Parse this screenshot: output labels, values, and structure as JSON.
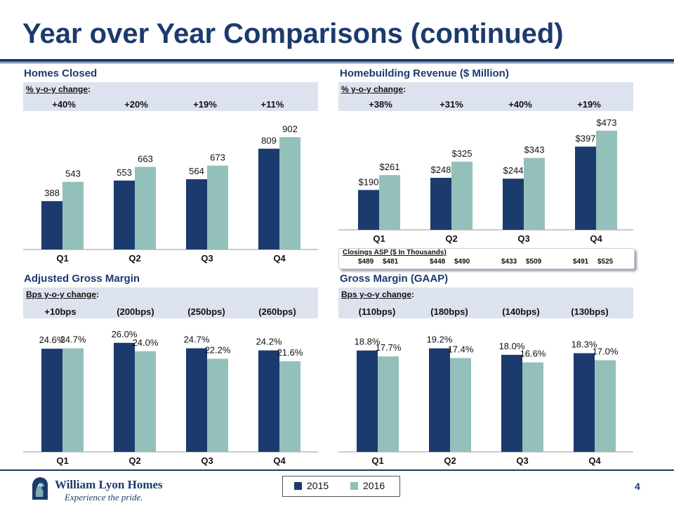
{
  "title": "Year over Year Comparisons (continued)",
  "colors": {
    "navy": "#1b3a6e",
    "teal": "#93c0bb",
    "series2015": "#1b3a6e",
    "series2016": "#93c0bb"
  },
  "legend": [
    {
      "label": "2015",
      "color": "#1b3a6e"
    },
    {
      "label": "2016",
      "color": "#93c0bb"
    }
  ],
  "page_number": "4",
  "logo": {
    "name": "William Lyon Homes",
    "tagline": "Experience the pride."
  },
  "panels": {
    "homes_closed": {
      "title": "Homes Closed",
      "yoy_label": "% y-o-y change",
      "yoy_values": [
        "+40%",
        "+20%",
        "+19%",
        "+11%"
      ]
    },
    "revenue": {
      "title": "Homebuilding Revenue ($ Million)",
      "yoy_label": "% y-o-y change",
      "yoy_values": [
        "+38%",
        "+31%",
        "+40%",
        "+19%"
      ]
    },
    "adj_margin": {
      "title": "Adjusted Gross Margin",
      "yoy_label": "Bps y-o-y change",
      "yoy_values": [
        "+10bps",
        "(200bps)",
        "(250bps)",
        "(260bps)"
      ]
    },
    "gaap_margin": {
      "title": "Gross Margin (GAAP)",
      "yoy_label": "Bps y-o-y change",
      "yoy_values": [
        "(110bps)",
        "(180bps)",
        "(140bps)",
        "(130bps)"
      ]
    }
  },
  "asp": {
    "title": "Closings ASP ($ In Thousands)",
    "groups": [
      {
        "v2015": "$489",
        "v2016": "$481"
      },
      {
        "v2015": "$448",
        "v2016": "$490"
      },
      {
        "v2015": "$433",
        "v2016": "$509"
      },
      {
        "v2015": "$491",
        "v2016": "$525"
      }
    ]
  },
  "chart_data": [
    {
      "id": "homes_closed",
      "type": "bar",
      "title": "Homes Closed",
      "categories": [
        "Q1",
        "Q2",
        "Q3",
        "Q4"
      ],
      "series": [
        {
          "name": "2015",
          "values": [
            388,
            553,
            564,
            809
          ],
          "labels": [
            "388",
            "553",
            "564",
            "809"
          ]
        },
        {
          "name": "2016",
          "values": [
            543,
            663,
            673,
            902
          ],
          "labels": [
            "543",
            "663",
            "673",
            "902"
          ]
        }
      ],
      "ylim": [
        0,
        1100
      ]
    },
    {
      "id": "revenue",
      "type": "bar",
      "title": "Homebuilding Revenue ($ Million)",
      "categories": [
        "Q1",
        "Q2",
        "Q3",
        "Q4"
      ],
      "series": [
        {
          "name": "2015",
          "values": [
            190,
            248,
            244,
            397
          ],
          "labels": [
            "$190",
            "$248",
            "$244",
            "$397"
          ]
        },
        {
          "name": "2016",
          "values": [
            261,
            325,
            343,
            473
          ],
          "labels": [
            "$261",
            "$325",
            "$343",
            "$473"
          ]
        }
      ],
      "ylim": [
        0,
        560
      ]
    },
    {
      "id": "adj_margin",
      "type": "bar",
      "title": "Adjusted Gross Margin",
      "categories": [
        "Q1",
        "Q2",
        "Q3",
        "Q4"
      ],
      "series": [
        {
          "name": "2015",
          "values": [
            24.6,
            26.0,
            24.7,
            24.2
          ],
          "labels": [
            "24.6%",
            "26.0%",
            "24.7%",
            "24.2%"
          ]
        },
        {
          "name": "2016",
          "values": [
            24.7,
            24.0,
            22.2,
            21.6
          ],
          "labels": [
            "24.7%",
            "24.0%",
            "22.2%",
            "21.6%"
          ]
        }
      ],
      "ylim": [
        0,
        31.5
      ]
    },
    {
      "id": "gaap_margin",
      "type": "bar",
      "title": "Gross Margin (GAAP)",
      "categories": [
        "Q1",
        "Q2",
        "Q3",
        "Q4"
      ],
      "series": [
        {
          "name": "2015",
          "values": [
            18.8,
            19.2,
            18.0,
            18.3
          ],
          "labels": [
            "18.8%",
            "19.2%",
            "18.0%",
            "18.3%"
          ]
        },
        {
          "name": "2016",
          "values": [
            17.7,
            17.4,
            16.6,
            17.0
          ],
          "labels": [
            "17.7%",
            "17.4%",
            "16.6%",
            "17.0%"
          ]
        }
      ],
      "ylim": [
        0,
        24.5
      ]
    }
  ]
}
